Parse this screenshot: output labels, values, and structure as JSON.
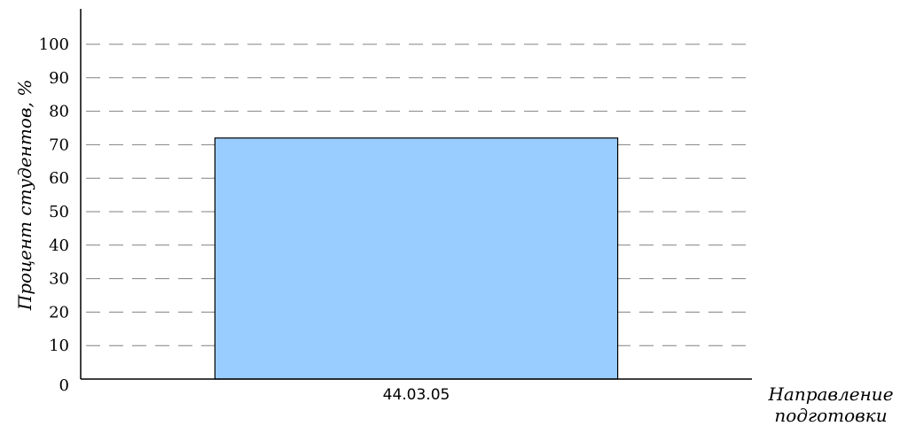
{
  "chart_data": {
    "type": "bar",
    "categories": [
      "44.03.05"
    ],
    "values": [
      72
    ],
    "title": "",
    "xlabel_line1": "Направление",
    "xlabel_line2": "подготовки",
    "ylabel": "Процент студентов, %",
    "ylim": [
      0,
      100
    ],
    "yticks": [
      0,
      10,
      20,
      30,
      40,
      50,
      60,
      70,
      80,
      90,
      100
    ],
    "grid": true,
    "grid_style": "dashed",
    "bar_color": "#99ccff",
    "bar_edge_color": "#000000",
    "grid_color": "#808080"
  }
}
